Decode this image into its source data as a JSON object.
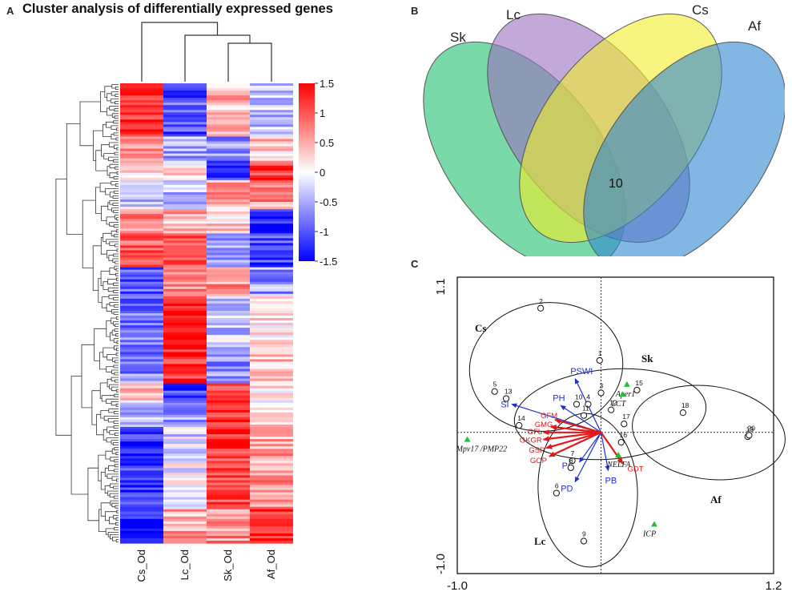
{
  "panels": {
    "a": "A",
    "b": "B",
    "c": "C"
  },
  "chart_data": [
    {
      "type": "heatmap",
      "title": "Cluster analysis of differentially expressed genes",
      "columns": [
        "Cs_Od",
        "Lc_Od",
        "Sk_Od",
        "Af_Od"
      ],
      "colorbar": {
        "ticks": [
          "1.5",
          "1",
          "0.5",
          "0",
          "-0.5",
          "-1",
          "-1.5"
        ],
        "range": [
          -1.5,
          1.5
        ],
        "low_color": "#0000ff",
        "mid_color": "#ffffff",
        "high_color": "#ff0000"
      },
      "blocks": [
        {
          "rows": 22,
          "values": [
            1.3,
            -1.0,
            0.4,
            -0.4
          ]
        },
        {
          "rows": 10,
          "values": [
            0.8,
            -0.5,
            -0.6,
            0.3
          ]
        },
        {
          "rows": 8,
          "values": [
            0.3,
            0.2,
            -1.0,
            1.2
          ]
        },
        {
          "rows": 12,
          "values": [
            -0.3,
            -0.4,
            0.5,
            0.6
          ]
        },
        {
          "rows": 10,
          "values": [
            0.7,
            0.5,
            0.3,
            -1.2
          ]
        },
        {
          "rows": 14,
          "values": [
            0.9,
            0.9,
            -0.5,
            -1.1
          ]
        },
        {
          "rows": 12,
          "values": [
            -0.9,
            0.8,
            0.6,
            -0.6
          ]
        },
        {
          "rows": 22,
          "values": [
            -0.8,
            1.4,
            -0.3,
            0.2
          ]
        },
        {
          "rows": 14,
          "values": [
            -0.7,
            1.3,
            -0.6,
            0.4
          ]
        },
        {
          "rows": 8,
          "values": [
            0.3,
            -1.2,
            1.0,
            0.1
          ]
        },
        {
          "rows": 10,
          "values": [
            -0.4,
            -0.6,
            1.3,
            0.3
          ]
        },
        {
          "rows": 10,
          "values": [
            -1.3,
            -0.2,
            1.3,
            0.5
          ]
        },
        {
          "rows": 24,
          "values": [
            -1.2,
            -0.1,
            1.1,
            0.6
          ]
        },
        {
          "rows": 14,
          "values": [
            -1.4,
            0.5,
            0.7,
            1.3
          ]
        }
      ]
    },
    {
      "type": "venn",
      "sets": [
        "Sk",
        "Lc",
        "Cs",
        "Af"
      ],
      "colors": {
        "Sk": "#1fbf6f",
        "Lc": "#9a6fc0",
        "Cs": "#f2ef2a",
        "Af": "#2f86d1"
      },
      "intersection_all": "10"
    },
    {
      "type": "scatter",
      "xlim": [
        -1.0,
        1.2
      ],
      "ylim": [
        -1.0,
        1.1
      ],
      "x_ticks": [
        "-1.0",
        "1.2"
      ],
      "y_ticks": [
        "1.1",
        "-1.0"
      ],
      "samples": [
        {
          "label": "1",
          "x": -0.01,
          "y": 0.51
        },
        {
          "label": "2",
          "x": -0.42,
          "y": 0.88
        },
        {
          "label": "3",
          "x": 0.0,
          "y": 0.28
        },
        {
          "label": "4",
          "x": -0.09,
          "y": 0.2
        },
        {
          "label": "5",
          "x": -0.74,
          "y": 0.29
        },
        {
          "label": "6",
          "x": -0.31,
          "y": -0.43
        },
        {
          "label": "7",
          "x": -0.2,
          "y": -0.2
        },
        {
          "label": "8",
          "x": -0.21,
          "y": -0.25
        },
        {
          "label": "9",
          "x": -0.12,
          "y": -0.77
        },
        {
          "label": "10",
          "x": -0.17,
          "y": 0.2
        },
        {
          "label": "11",
          "x": -0.12,
          "y": 0.12
        },
        {
          "label": "12",
          "x": 0.07,
          "y": 0.16
        },
        {
          "label": "13",
          "x": -0.66,
          "y": 0.24
        },
        {
          "label": "14",
          "x": -0.57,
          "y": 0.05
        },
        {
          "label": "15",
          "x": 0.25,
          "y": 0.3
        },
        {
          "label": "16",
          "x": 0.14,
          "y": -0.07
        },
        {
          "label": "17",
          "x": 0.16,
          "y": 0.06
        },
        {
          "label": "18",
          "x": 0.57,
          "y": 0.14
        },
        {
          "label": "19",
          "x": 1.02,
          "y": -0.03
        },
        {
          "label": "20",
          "x": 1.03,
          "y": -0.02
        }
      ],
      "species": [
        {
          "label": "Aper1",
          "x": 0.18,
          "y": 0.34
        },
        {
          "label": "LCT",
          "x": 0.15,
          "y": 0.27
        },
        {
          "label": "Mpv17 /PMP22",
          "x": -0.93,
          "y": -0.05
        },
        {
          "label": "NELFA",
          "x": 0.12,
          "y": -0.16
        },
        {
          "label": "ICP",
          "x": 0.37,
          "y": -0.65
        }
      ],
      "environment_arrows": [
        {
          "label": "PSWI",
          "x": -0.18,
          "y": 0.38,
          "group": "blue"
        },
        {
          "label": "SI",
          "x": -0.62,
          "y": 0.2,
          "group": "blue"
        },
        {
          "label": "PH",
          "x": -0.28,
          "y": 0.19,
          "group": "blue"
        },
        {
          "label": "PC",
          "x": -0.15,
          "y": -0.21,
          "group": "blue"
        },
        {
          "label": "PD",
          "x": -0.18,
          "y": -0.35,
          "group": "blue"
        },
        {
          "label": "PB",
          "x": 0.05,
          "y": -0.27,
          "group": "blue"
        },
        {
          "label": "GFM",
          "x": -0.32,
          "y": 0.09,
          "group": "red"
        },
        {
          "label": "GMG",
          "x": -0.35,
          "y": 0.04,
          "group": "red"
        },
        {
          "label": "GFL",
          "x": -0.4,
          "y": 0.0,
          "group": "red"
        },
        {
          "label": "GKGR",
          "x": -0.4,
          "y": -0.05,
          "group": "red"
        },
        {
          "label": "GSP",
          "x": -0.38,
          "y": -0.11,
          "group": "red"
        },
        {
          "label": "GOP",
          "x": -0.36,
          "y": -0.17,
          "group": "red"
        },
        {
          "label": "GDT",
          "x": 0.15,
          "y": -0.22,
          "group": "red"
        }
      ],
      "groups": [
        {
          "label": "Cs"
        },
        {
          "label": "Sk"
        },
        {
          "label": "Af"
        },
        {
          "label": "Lc"
        }
      ]
    }
  ]
}
